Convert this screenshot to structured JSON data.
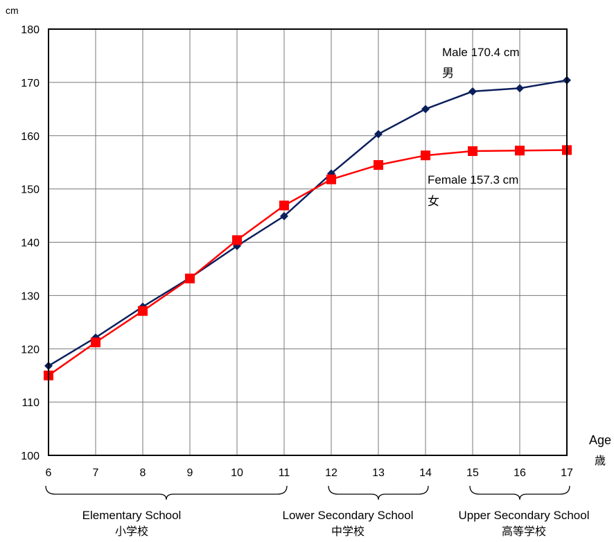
{
  "chart_data": {
    "type": "line",
    "y_unit": "cm",
    "x_axis_label": {
      "en": "Age",
      "ja": "歳"
    },
    "x": [
      6,
      7,
      8,
      9,
      10,
      11,
      12,
      13,
      14,
      15,
      16,
      17
    ],
    "ylim": [
      100,
      180
    ],
    "yticks": [
      100,
      110,
      120,
      130,
      140,
      150,
      160,
      170,
      180
    ],
    "grid": true,
    "series": [
      {
        "name": "Male 170.4 cm",
        "name_ja": "男",
        "color": "#0b1f5c",
        "marker": "diamond",
        "values": [
          116.8,
          122.1,
          127.9,
          133.3,
          139.3,
          144.9,
          152.9,
          160.3,
          165.0,
          168.3,
          168.9,
          170.4
        ]
      },
      {
        "name": "Female 157.3 cm",
        "name_ja": "女",
        "color": "#ff0000",
        "marker": "square",
        "values": [
          115.0,
          121.2,
          127.1,
          133.2,
          140.4,
          146.9,
          151.8,
          154.5,
          156.3,
          157.1,
          157.2,
          157.3
        ]
      }
    ],
    "school_groups": [
      {
        "label_en": "Elementary School",
        "label_ja": "小学校",
        "from": 6,
        "to": 11
      },
      {
        "label_en": "Lower Secondary School",
        "label_ja": "中学校",
        "from": 12,
        "to": 14
      },
      {
        "label_en": "Upper Secondary School",
        "label_ja": "高等学校",
        "from": 15,
        "to": 17
      }
    ]
  }
}
